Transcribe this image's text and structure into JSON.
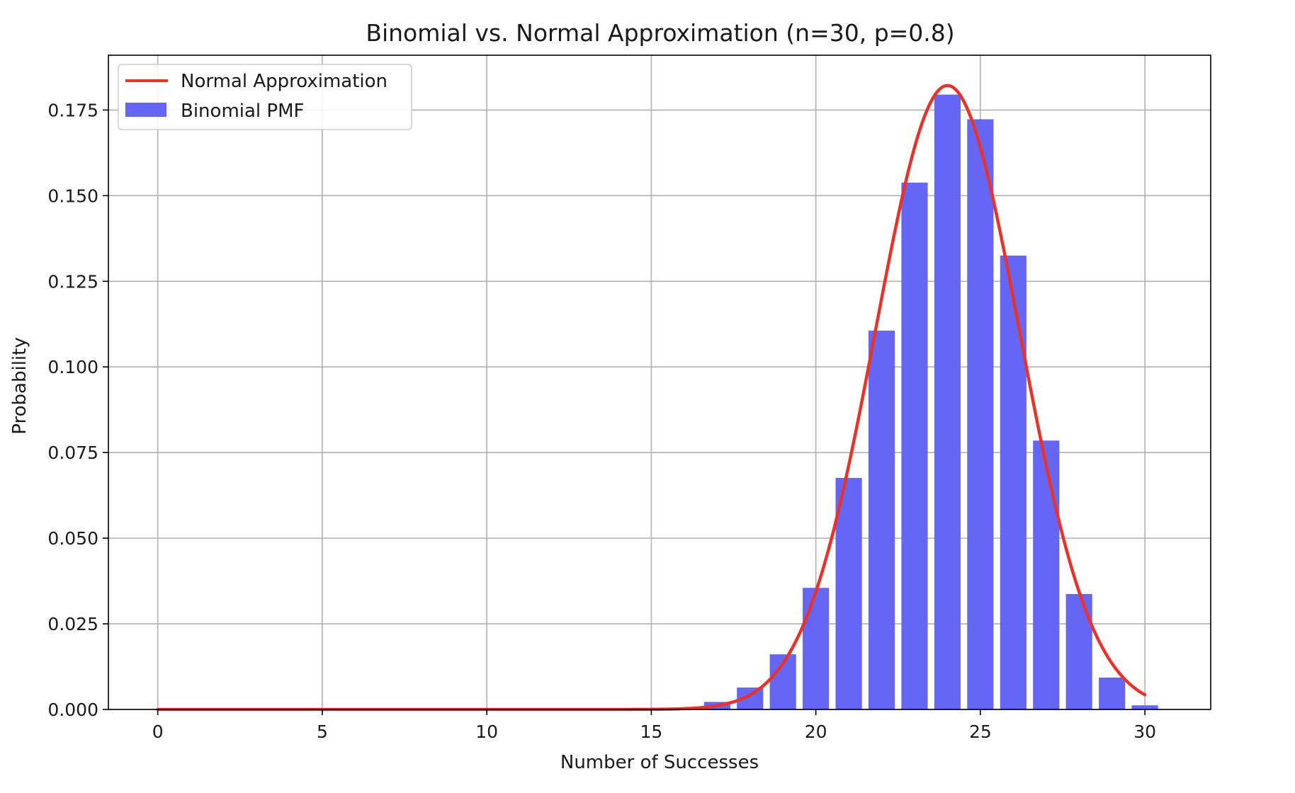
{
  "chart_data": {
    "type": "bar",
    "title": "Binomial vs. Normal Approximation (n=30, p=0.8)",
    "xlabel": "Number of Successes",
    "ylabel": "Probability",
    "xlim": [
      -1.5,
      32.0
    ],
    "ylim": [
      0.0,
      0.191
    ],
    "xticks": [
      0,
      5,
      10,
      15,
      20,
      25,
      30
    ],
    "yticks": [
      0.0,
      0.025,
      0.05,
      0.075,
      0.1,
      0.125,
      0.15,
      0.175
    ],
    "xtick_labels": [
      "0",
      "5",
      "10",
      "15",
      "20",
      "25",
      "30"
    ],
    "ytick_labels": [
      "0.000",
      "0.025",
      "0.050",
      "0.075",
      "0.100",
      "0.125",
      "0.150",
      "0.175"
    ],
    "grid": true,
    "legend_position": "upper left",
    "series": [
      {
        "name": "Normal Approximation",
        "kind": "line",
        "color": "#e8332a",
        "mean": 24,
        "std": 2.19,
        "x_range": [
          0,
          30
        ]
      },
      {
        "name": "Binomial PMF",
        "kind": "bar",
        "color": "#6666f4",
        "x": [
          0,
          1,
          2,
          3,
          4,
          5,
          6,
          7,
          8,
          9,
          10,
          11,
          12,
          13,
          14,
          15,
          16,
          17,
          18,
          19,
          20,
          21,
          22,
          23,
          24,
          25,
          26,
          27,
          28,
          29,
          30
        ],
        "values": [
          0,
          0,
          0,
          0,
          0,
          0,
          0,
          0,
          0,
          0,
          0,
          0,
          0,
          0,
          0,
          0.0001,
          0.0005,
          0.0022,
          0.0064,
          0.0161,
          0.0355,
          0.0676,
          0.1106,
          0.1538,
          0.1795,
          0.1723,
          0.1325,
          0.0785,
          0.0337,
          0.0093,
          0.0012
        ]
      }
    ]
  }
}
